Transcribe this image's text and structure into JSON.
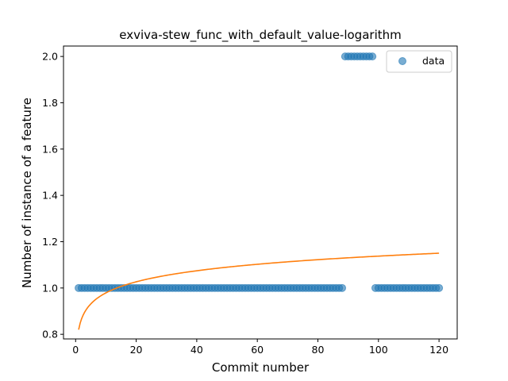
{
  "chart_data": {
    "type": "scatter",
    "title": "exviva-stew_func_with_default_value-logarithm",
    "xlabel": "Commit number",
    "ylabel": "Number of instance of a feature",
    "xlim": [
      -4,
      126
    ],
    "ylim": [
      0.78,
      2.045
    ],
    "x_ticks": [
      0,
      20,
      40,
      60,
      80,
      100,
      120
    ],
    "x_tick_labels": [
      "0",
      "20",
      "40",
      "60",
      "80",
      "100",
      "120"
    ],
    "y_ticks": [
      0.8,
      1.0,
      1.2,
      1.4,
      1.6,
      1.8,
      2.0
    ],
    "y_tick_labels": [
      "0.8",
      "1.0",
      "1.2",
      "1.4",
      "1.6",
      "1.8",
      "2.0"
    ],
    "grid": false,
    "legend": {
      "position": "top-right",
      "entries": [
        "data"
      ]
    },
    "colors": {
      "data": "#1f77b4",
      "fit": "#ff7f0e"
    },
    "series": [
      {
        "name": "data",
        "kind": "scatter",
        "segments": [
          {
            "x_start": 1,
            "x_end": 88,
            "y": 1.0
          },
          {
            "x_start": 89,
            "x_end": 98,
            "y": 2.0
          },
          {
            "x_start": 99,
            "x_end": 120,
            "y": 1.0
          }
        ]
      },
      {
        "kind": "line",
        "fit": {
          "model": "logarithmic",
          "a": 0.8202,
          "b": 0.06893,
          "x_start": 1,
          "x_end": 120
        }
      }
    ]
  }
}
